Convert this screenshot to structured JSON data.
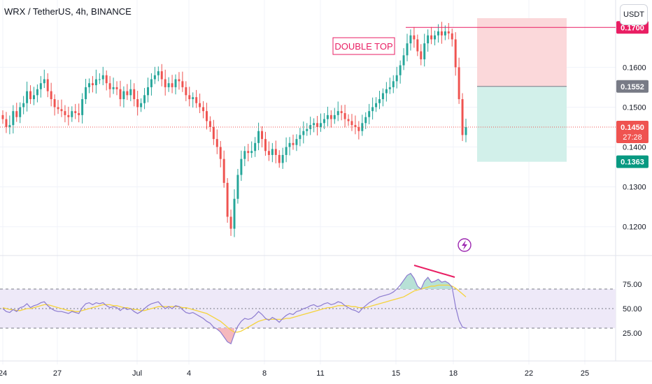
{
  "header": {
    "title": "WRX / TetherUS, 4h, BINANCE",
    "currency": "USDT"
  },
  "annotations": {
    "pattern_label": "DOUBLE TOP"
  },
  "colors": {
    "up": "#26a69a",
    "down": "#ef5350",
    "rsi": "#8c7bd0",
    "rsi_ma": "#f5d33b",
    "stop_zone": "#fbd8da",
    "target_zone": "#d2f0ea",
    "red_line": "#e91e63"
  },
  "price_axis": {
    "ticks": [
      "0.1600",
      "0.1500",
      "0.1400",
      "0.1300",
      "0.1200"
    ]
  },
  "price_tags": {
    "resistance": "0.1700",
    "entry": "0.1552",
    "current": "0.1450",
    "countdown": "27:28",
    "target": "0.1363"
  },
  "rsi_axis": {
    "ticks": [
      "75.00",
      "50.00",
      "25.00"
    ]
  },
  "time_axis": {
    "ticks": [
      "24",
      "27",
      "Jul",
      "4",
      "8",
      "11",
      "15",
      "18",
      "22",
      "25"
    ]
  },
  "chart_data": {
    "type": "candlestick",
    "title": "WRX / TetherUS, 4h, BINANCE",
    "y_range": [
      0.114,
      0.176
    ],
    "price_levels": {
      "resistance": 0.17,
      "entry": 0.1552,
      "current": 0.145,
      "target": 0.1363
    },
    "closes": [
      0.147,
      0.145,
      0.1455,
      0.149,
      0.1475,
      0.15,
      0.151,
      0.154,
      0.152,
      0.153,
      0.1545,
      0.156,
      0.157,
      0.154,
      0.152,
      0.15,
      0.1495,
      0.149,
      0.148,
      0.1475,
      0.149,
      0.1485,
      0.148,
      0.152,
      0.155,
      0.156,
      0.1555,
      0.157,
      0.157,
      0.158,
      0.156,
      0.1545,
      0.155,
      0.1545,
      0.152,
      0.154,
      0.153,
      0.1545,
      0.152,
      0.15,
      0.151,
      0.153,
      0.155,
      0.157,
      0.158,
      0.159,
      0.157,
      0.155,
      0.156,
      0.155,
      0.157,
      0.1565,
      0.155,
      0.153,
      0.152,
      0.1525,
      0.151,
      0.15,
      0.149,
      0.1465,
      0.145,
      0.142,
      0.14,
      0.137,
      0.131,
      0.1225,
      0.1195,
      0.127,
      0.133,
      0.137,
      0.139,
      0.1385,
      0.139,
      0.141,
      0.144,
      0.142,
      0.139,
      0.138,
      0.1395,
      0.138,
      0.136,
      0.138,
      0.14,
      0.141,
      0.1405,
      0.142,
      0.143,
      0.144,
      0.1445,
      0.1455,
      0.146,
      0.145,
      0.146,
      0.147,
      0.148,
      0.147,
      0.148,
      0.149,
      0.1485,
      0.147,
      0.1465,
      0.1455,
      0.145,
      0.144,
      0.146,
      0.1475,
      0.149,
      0.15,
      0.151,
      0.152,
      0.1535,
      0.1545,
      0.155,
      0.1565,
      0.158,
      0.1605,
      0.163,
      0.166,
      0.168,
      0.167,
      0.164,
      0.162,
      0.166,
      0.168,
      0.167,
      0.168,
      0.169,
      0.168,
      0.169,
      0.1685,
      0.167,
      0.16,
      0.152,
      0.143,
      0.145
    ],
    "rsi": {
      "range": [
        0,
        100
      ],
      "upper_band": 70,
      "mid": 50,
      "lower_band": 30,
      "values": [
        50,
        47,
        46,
        49,
        47,
        51,
        52,
        55,
        51,
        53,
        54,
        56,
        57,
        53,
        50,
        48,
        47,
        47,
        46,
        45,
        47,
        46,
        45,
        51,
        55,
        56,
        54,
        56,
        55,
        56,
        53,
        51,
        52,
        51,
        48,
        51,
        49,
        50,
        47,
        45,
        47,
        50,
        53,
        55,
        56,
        57,
        53,
        50,
        52,
        50,
        53,
        52,
        49,
        46,
        45,
        46,
        44,
        42,
        40,
        37,
        35,
        31,
        29,
        26,
        21,
        16,
        14,
        24,
        32,
        37,
        40,
        39,
        40,
        43,
        47,
        44,
        40,
        38,
        41,
        39,
        36,
        40,
        43,
        45,
        44,
        47,
        48,
        50,
        51,
        53,
        54,
        52,
        53,
        55,
        56,
        54,
        55,
        57,
        56,
        53,
        51,
        49,
        48,
        46,
        50,
        53,
        56,
        58,
        60,
        62,
        63,
        64,
        65,
        67,
        70,
        74,
        79,
        84,
        86,
        81,
        73,
        70,
        78,
        82,
        77,
        78,
        80,
        77,
        78,
        76,
        72,
        52,
        38,
        31,
        30
      ],
      "ma_values": [
        51,
        50,
        49,
        49,
        48,
        48,
        49,
        50,
        50,
        51,
        52,
        53,
        54,
        54,
        53,
        52,
        51,
        50,
        49,
        48,
        48,
        47,
        47,
        48,
        49,
        50,
        51,
        52,
        53,
        54,
        54,
        54,
        53,
        53,
        52,
        51,
        51,
        50,
        49,
        49,
        48,
        48,
        49,
        50,
        51,
        52,
        52,
        52,
        52,
        52,
        52,
        52,
        51,
        51,
        50,
        49,
        48,
        47,
        46,
        45,
        43,
        41,
        39,
        37,
        34,
        31,
        28,
        26,
        26,
        27,
        29,
        31,
        33,
        35,
        37,
        38,
        39,
        39,
        39,
        39,
        39,
        39,
        40,
        40,
        41,
        42,
        43,
        44,
        45,
        46,
        47,
        48,
        49,
        50,
        51,
        51,
        52,
        53,
        53,
        53,
        53,
        52,
        52,
        51,
        51,
        51,
        52,
        53,
        54,
        55,
        56,
        57,
        58,
        59,
        60,
        61,
        62,
        64,
        66,
        68,
        69,
        70,
        71,
        72,
        73,
        73,
        74,
        74,
        74,
        74,
        73,
        71,
        68,
        65,
        62
      ]
    }
  }
}
